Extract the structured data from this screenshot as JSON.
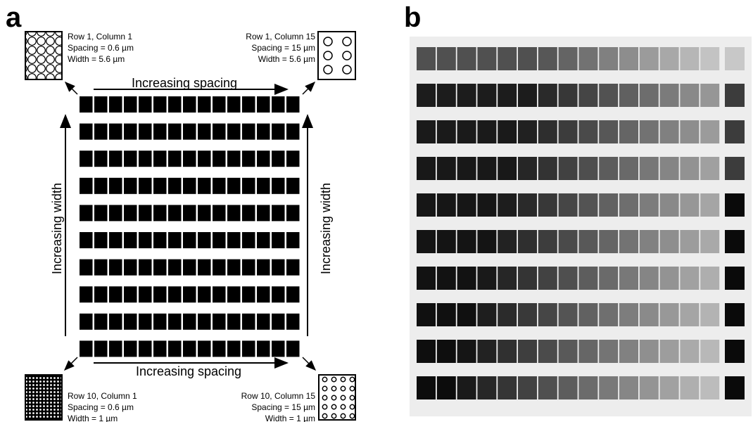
{
  "panel_a": {
    "label": "a",
    "corners": [
      {
        "lines": [
          "Row 1, Column 1",
          "Spacing = 0.6 µm",
          "Width = 5.6 µm"
        ]
      },
      {
        "lines": [
          "Row 1, Column 15",
          "Spacing = 15 µm",
          "Width = 5.6 µm"
        ]
      },
      {
        "lines": [
          "Row 10, Column 1",
          "Spacing = 0.6 µm",
          "Width = 1 µm"
        ]
      },
      {
        "lines": [
          "Row 10, Column 15",
          "Spacing = 15 µm",
          "Width = 1 µm"
        ]
      }
    ],
    "arrows": {
      "top": "Increasing spacing",
      "bottom": "Increasing spacing",
      "left": "Increasing width",
      "right": "Increasing width"
    }
  },
  "panel_b": {
    "label": "b"
  }
}
